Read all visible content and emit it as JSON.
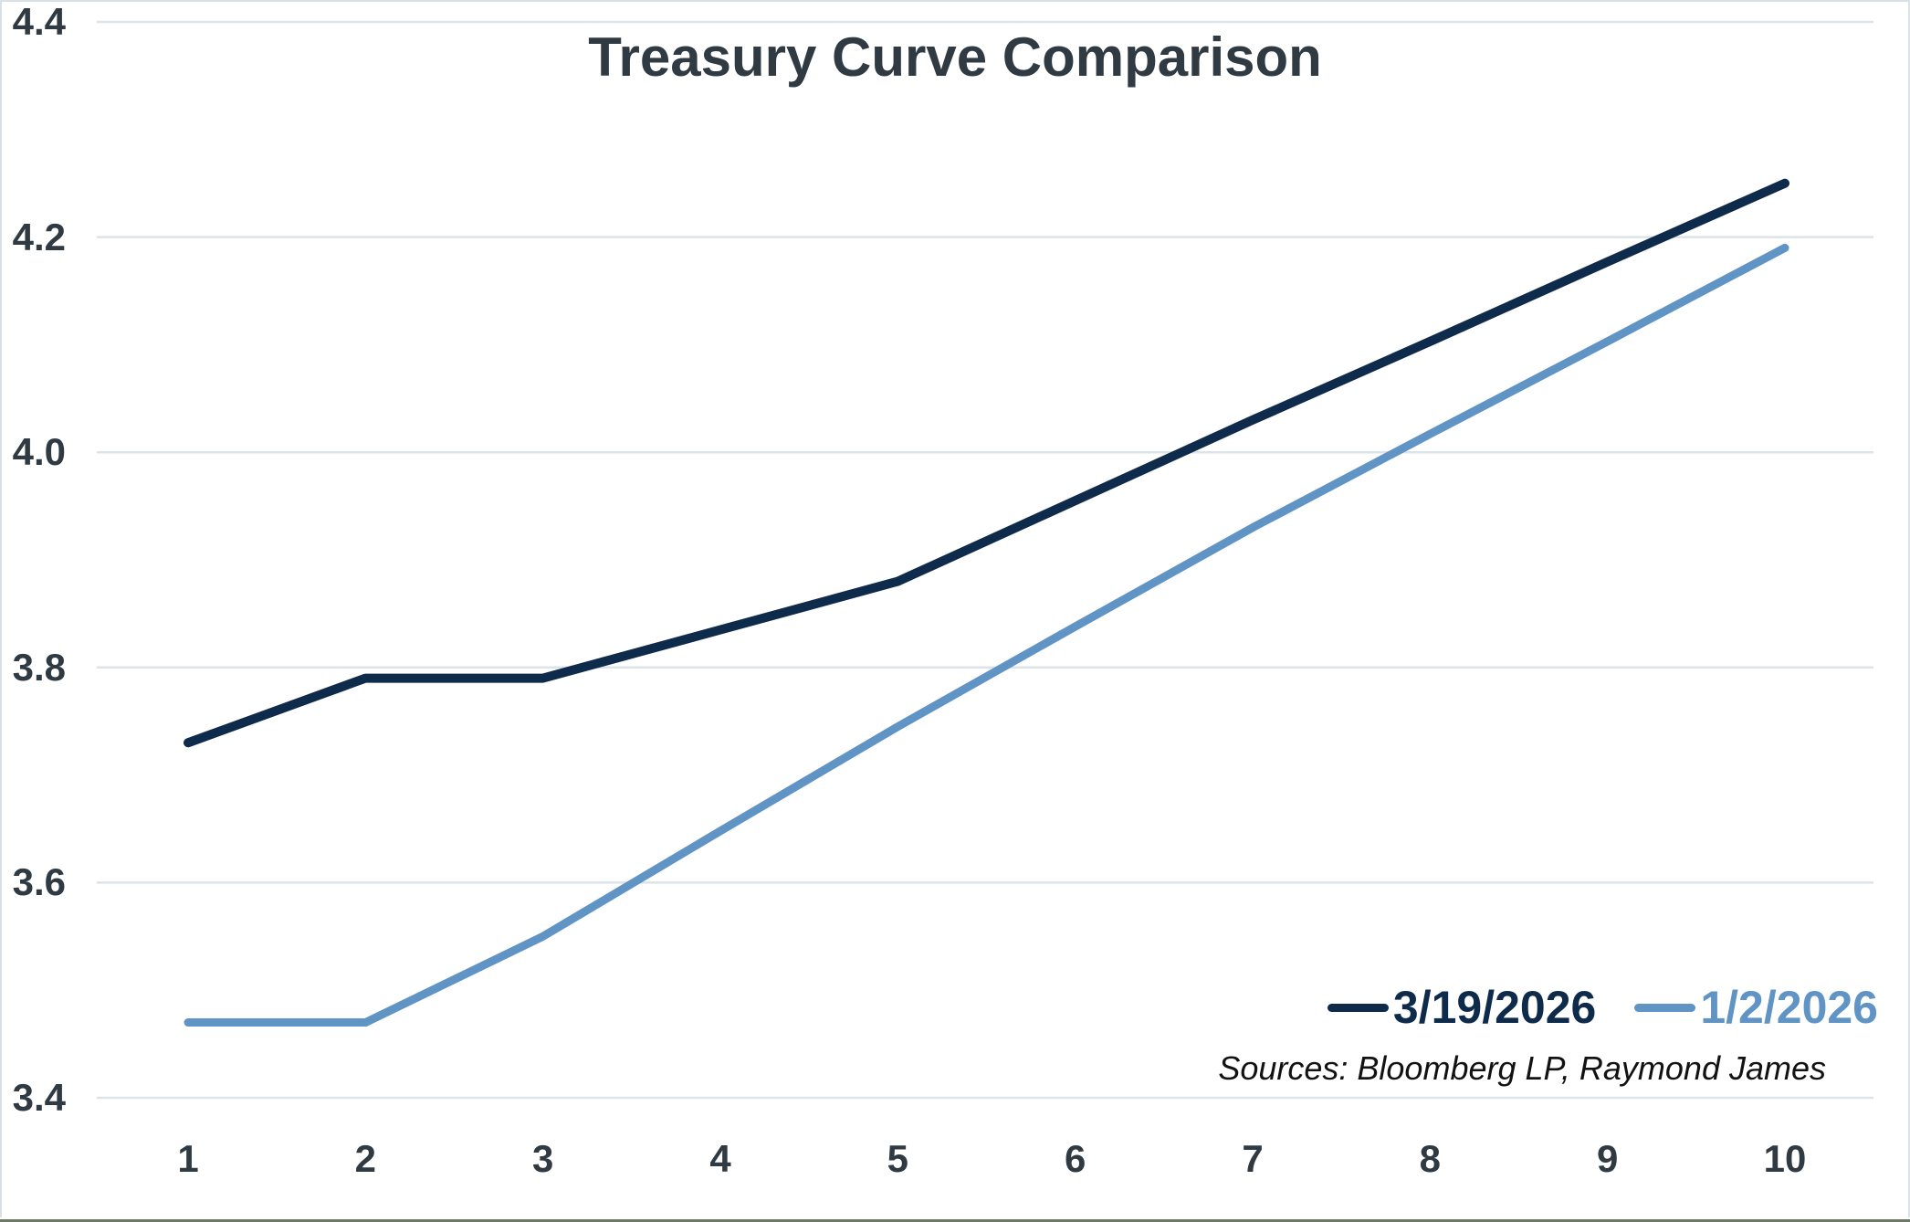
{
  "title": "Treasury Curve Comparison",
  "chart_data": {
    "type": "line",
    "title": "Treasury Curve Comparison",
    "x": [
      1,
      2,
      3,
      4,
      5,
      6,
      7,
      8,
      9,
      10
    ],
    "x_tick_labels": [
      "1",
      "2",
      "3",
      "4",
      "5",
      "6",
      "7",
      "8",
      "9",
      "10"
    ],
    "xlabel": "",
    "ylabel": "",
    "ylim": [
      3.4,
      4.4
    ],
    "y_ticks": [
      3.4,
      3.6,
      3.8,
      4.0,
      4.2,
      4.4
    ],
    "y_tick_labels": [
      "3.4",
      "3.6",
      "3.8",
      "4.0",
      "4.2",
      "4.4"
    ],
    "grid": "horizontal-only",
    "legend_position": "inside-bottom-right",
    "series": [
      {
        "name": "3/19/2026",
        "color": "#0f2b4b",
        "line_width": 10,
        "values": [
          3.73,
          3.79,
          3.79,
          3.835,
          3.88,
          3.955,
          4.03,
          4.103,
          4.177,
          4.25
        ]
      },
      {
        "name": "1/2/2026",
        "color": "#6094c4",
        "line_width": 9,
        "values": [
          3.47,
          3.47,
          3.55,
          3.648,
          3.745,
          3.838,
          3.93,
          4.017,
          4.103,
          4.19
        ]
      }
    ],
    "source_note": "Sources: Bloomberg LP, Raymond James"
  },
  "legend": {
    "items": [
      {
        "label": "3/19/2026",
        "color": "#0f2b4b"
      },
      {
        "label": "1/2/2026",
        "color": "#6094c4"
      }
    ]
  },
  "sources": "Sources: Bloomberg LP, Raymond James",
  "colors": {
    "background": "#ffffff",
    "border": "#d8e1e7",
    "gridline": "#dde4e9",
    "text": "#303a43",
    "series1": "#0f2b4b",
    "series2": "#6094c4"
  }
}
